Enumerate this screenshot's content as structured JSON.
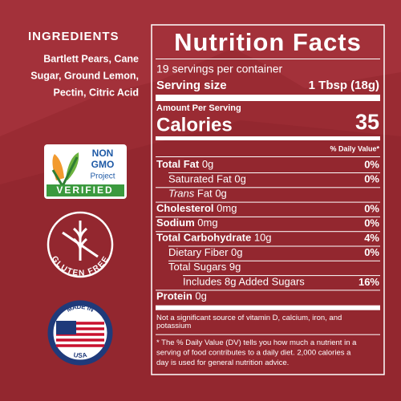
{
  "ingredients": {
    "title": "INGREDIENTS",
    "lines": [
      "Bartlett Pears, Cane",
      "Sugar, Ground Lemon,",
      "Pectin, Citric Acid"
    ]
  },
  "badges": {
    "non_gmo": {
      "line1": "NON",
      "line2": "GMO",
      "line3": "Project",
      "line4": "VERIFIED"
    },
    "gluten_free": "GLUTEN FREE",
    "made_in_usa": {
      "top": "MADE IN",
      "bottom": "USA"
    }
  },
  "nutrition": {
    "title": "Nutrition Facts",
    "servings": "19 servings per container",
    "serving_size_label": "Serving size",
    "serving_size_value": "1 Tbsp (18g)",
    "amount_per_serving": "Amount Per Serving",
    "calories_label": "Calories",
    "calories_value": "35",
    "dv_header": "% Daily Value*",
    "rows": [
      {
        "label": "Total Fat",
        "amount": "0g",
        "dv": "0%"
      },
      {
        "label": "Saturated Fat",
        "amount": "0g",
        "dv": "0%"
      },
      {
        "label": "Trans",
        "rest": "Fat",
        "amount": "0g"
      },
      {
        "label": "Cholesterol",
        "amount": "0mg",
        "dv": "0%"
      },
      {
        "label": "Sodium",
        "amount": "0mg",
        "dv": "0%"
      },
      {
        "label": "Total Carbohydrate",
        "amount": "10g",
        "dv": "4%"
      },
      {
        "label": "Dietary Fiber",
        "amount": "0g",
        "dv": "0%"
      },
      {
        "label": "Total Sugars",
        "amount": "9g"
      },
      {
        "label": "Includes 8g Added Sugars",
        "dv": "16%"
      },
      {
        "label": "Protein",
        "amount": "0g"
      }
    ],
    "footnote1": [
      "Not a significant source of vitamin D, calcium, iron, and",
      "potassium"
    ],
    "footnote2": [
      "* The % Daily Value (DV) tells you how much a nutrient in a",
      "serving of food contributes to a daily diet. 2,000 calories a",
      "day is used for general nutrition advice."
    ]
  }
}
